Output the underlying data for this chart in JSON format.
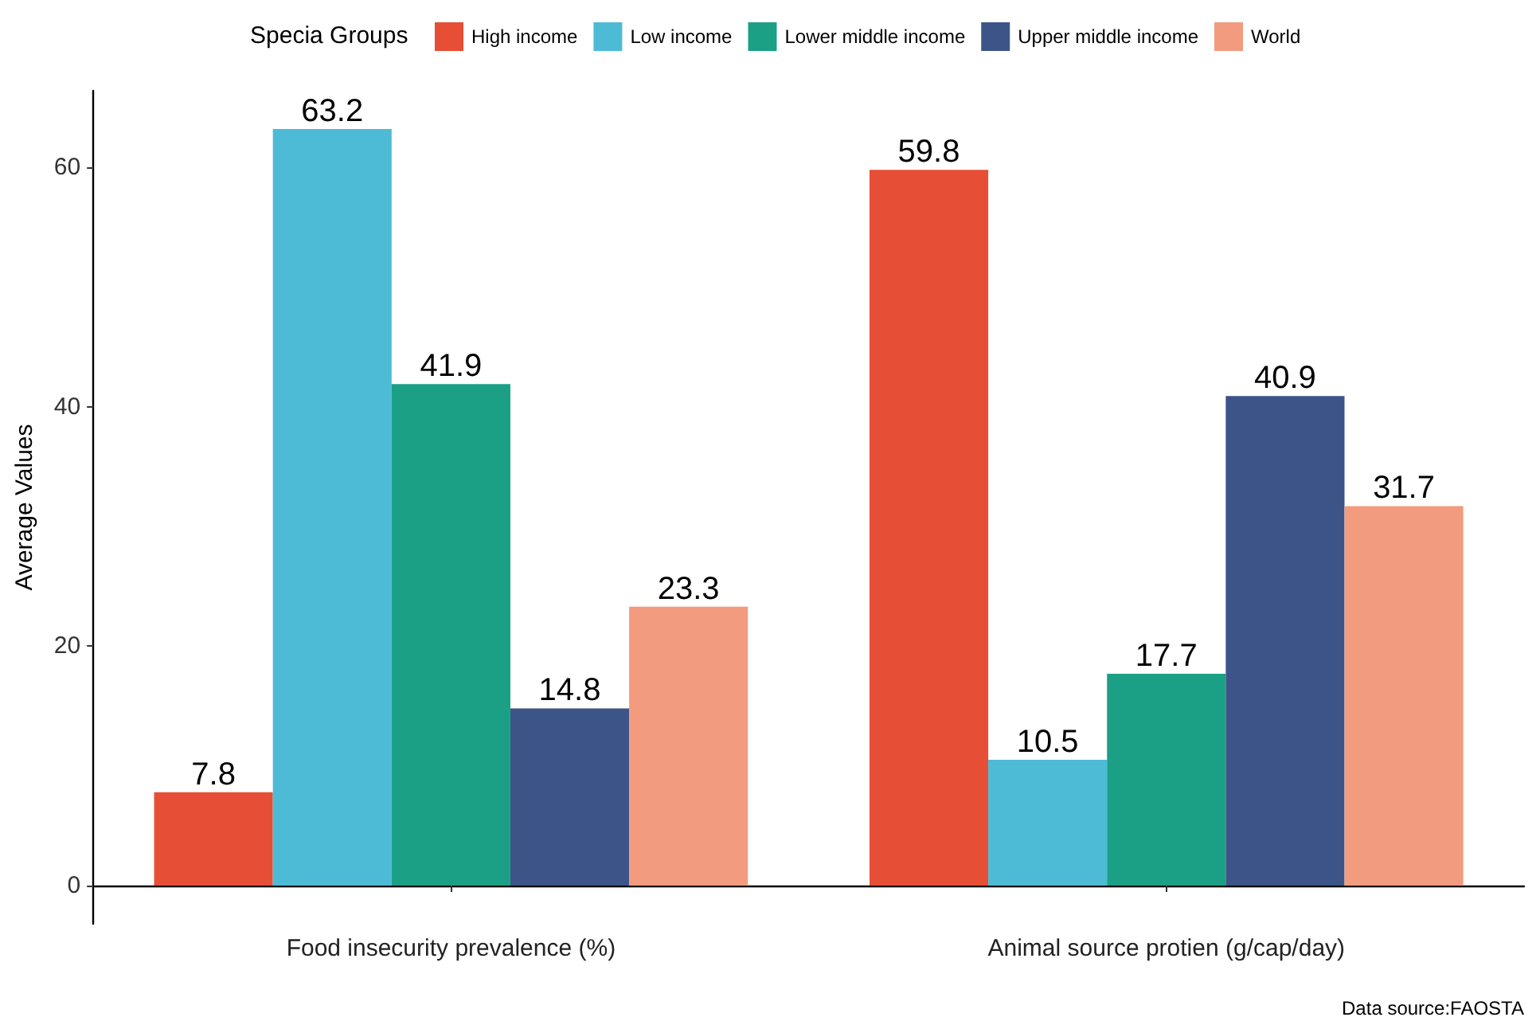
{
  "chart_data": {
    "type": "bar",
    "ylabel": "Average Values",
    "legend_title": "Specia Groups",
    "categories": [
      "Food insecurity prevalence (%)",
      "Animal source protien (g/cap/day)"
    ],
    "series": [
      {
        "name": "High income",
        "color": "#e64e35",
        "values": [
          7.8,
          59.8
        ]
      },
      {
        "name": "Low income",
        "color": "#4dbbd5",
        "values": [
          63.2,
          10.5
        ]
      },
      {
        "name": "Lower middle income",
        "color": "#1ba085",
        "values": [
          41.9,
          17.7
        ]
      },
      {
        "name": "Upper middle income",
        "color": "#3c5488",
        "values": [
          14.8,
          40.9
        ]
      },
      {
        "name": "World",
        "color": "#f39b7f",
        "values": [
          23.3,
          31.7
        ]
      }
    ],
    "ylim": [
      -3.2,
      66.4
    ],
    "yticks": [
      0,
      20,
      40,
      60
    ],
    "grid": false,
    "legend": "top",
    "data_labels": true,
    "annotations": [
      "Data source:FAOSTA"
    ]
  }
}
